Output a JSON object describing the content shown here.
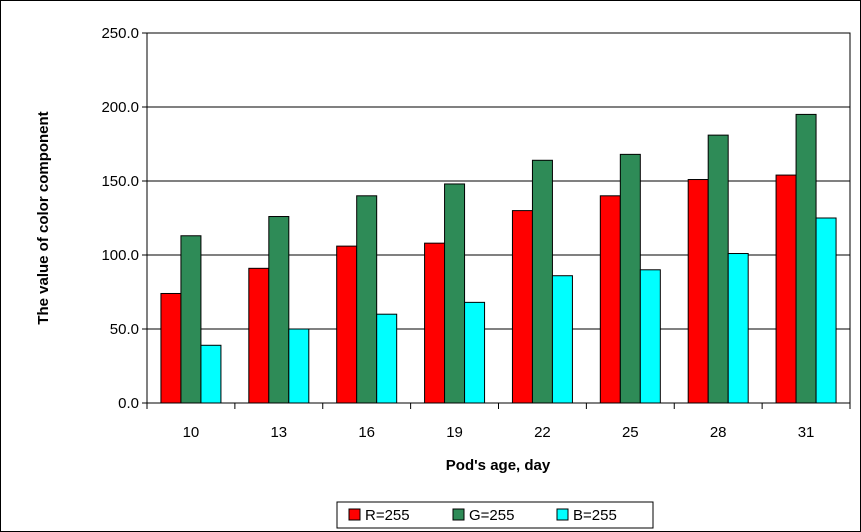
{
  "chart_data": {
    "type": "bar",
    "title": "",
    "xlabel": "Pod's age, day",
    "ylabel": "The value of color component",
    "categories": [
      "10",
      "13",
      "16",
      "19",
      "22",
      "25",
      "28",
      "31"
    ],
    "ylim": [
      0,
      250
    ],
    "yticks": [
      "0.0",
      "50.0",
      "100.0",
      "150.0",
      "200.0",
      "250.0"
    ],
    "grid": true,
    "legend_position": "bottom",
    "series": [
      {
        "name": "R=255",
        "color": "#ff0000",
        "values": [
          74,
          91,
          106,
          108,
          130,
          140,
          151,
          154
        ]
      },
      {
        "name": "G=255",
        "color": "#2e8b57",
        "values": [
          113,
          126,
          140,
          148,
          164,
          168,
          181,
          195
        ]
      },
      {
        "name": "B=255",
        "color": "#00ffff",
        "values": [
          39,
          50,
          60,
          68,
          86,
          90,
          101,
          125
        ]
      }
    ]
  }
}
